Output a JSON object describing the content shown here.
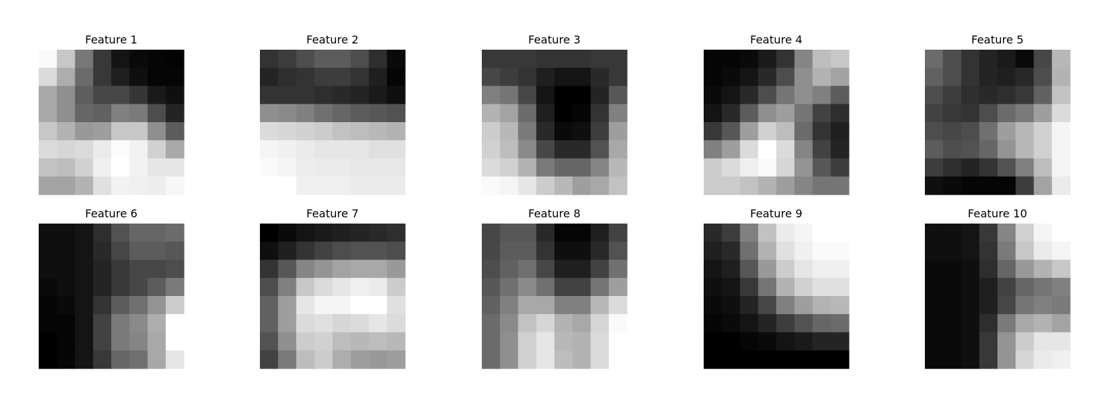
{
  "chart_data": {
    "type": "heatmap",
    "colormap": "gray",
    "value_range": [
      0,
      1
    ],
    "layout": {
      "rows": 2,
      "cols": 5
    },
    "panels": [
      {
        "title": "Feature 1",
        "values": [
          [
            0.98,
            0.78,
            0.47,
            0.22,
            0.08,
            0.04,
            0.02,
            0.01
          ],
          [
            0.86,
            0.68,
            0.42,
            0.22,
            0.12,
            0.06,
            0.02,
            0.02
          ],
          [
            0.66,
            0.56,
            0.37,
            0.28,
            0.28,
            0.21,
            0.1,
            0.06
          ],
          [
            0.66,
            0.56,
            0.4,
            0.38,
            0.5,
            0.48,
            0.3,
            0.14
          ],
          [
            0.78,
            0.7,
            0.6,
            0.62,
            0.78,
            0.78,
            0.56,
            0.36
          ],
          [
            0.86,
            0.84,
            0.86,
            0.92,
            0.99,
            0.95,
            0.82,
            0.66
          ],
          [
            0.76,
            0.74,
            0.82,
            0.94,
            1.0,
            0.95,
            0.9,
            0.9
          ],
          [
            0.64,
            0.64,
            0.7,
            0.88,
            0.95,
            0.94,
            0.93,
            0.97
          ]
        ]
      },
      {
        "title": "Feature 2",
        "values": [
          [
            0.2,
            0.24,
            0.3,
            0.36,
            0.36,
            0.3,
            0.18,
            0.04
          ],
          [
            0.14,
            0.18,
            0.2,
            0.24,
            0.24,
            0.2,
            0.12,
            0.02
          ],
          [
            0.2,
            0.2,
            0.2,
            0.18,
            0.16,
            0.14,
            0.1,
            0.06
          ],
          [
            0.56,
            0.54,
            0.5,
            0.44,
            0.4,
            0.36,
            0.34,
            0.32
          ],
          [
            0.86,
            0.84,
            0.82,
            0.8,
            0.76,
            0.74,
            0.72,
            0.7
          ],
          [
            0.96,
            0.94,
            0.92,
            0.9,
            0.9,
            0.9,
            0.88,
            0.88
          ],
          [
            0.98,
            0.96,
            0.93,
            0.92,
            0.92,
            0.91,
            0.91,
            0.91
          ],
          [
            1.0,
            1.0,
            0.94,
            0.94,
            0.94,
            0.92,
            0.92,
            0.92
          ]
        ]
      },
      {
        "title": "Feature 3",
        "values": [
          [
            0.22,
            0.22,
            0.22,
            0.2,
            0.2,
            0.2,
            0.22,
            0.22
          ],
          [
            0.28,
            0.24,
            0.2,
            0.12,
            0.08,
            0.08,
            0.16,
            0.22
          ],
          [
            0.5,
            0.46,
            0.28,
            0.08,
            0.0,
            0.0,
            0.14,
            0.34
          ],
          [
            0.7,
            0.64,
            0.42,
            0.12,
            0.0,
            0.02,
            0.2,
            0.5
          ],
          [
            0.8,
            0.72,
            0.48,
            0.16,
            0.04,
            0.06,
            0.24,
            0.62
          ],
          [
            0.82,
            0.74,
            0.54,
            0.28,
            0.16,
            0.16,
            0.32,
            0.66
          ],
          [
            0.86,
            0.82,
            0.7,
            0.48,
            0.4,
            0.4,
            0.52,
            0.72
          ],
          [
            0.98,
            0.96,
            0.9,
            0.8,
            0.72,
            0.62,
            0.66,
            0.76
          ]
        ]
      },
      {
        "title": "Feature 4",
        "values": [
          [
            0.02,
            0.02,
            0.04,
            0.1,
            0.2,
            0.52,
            0.74,
            0.78
          ],
          [
            0.02,
            0.04,
            0.08,
            0.16,
            0.3,
            0.56,
            0.7,
            0.64
          ],
          [
            0.04,
            0.08,
            0.16,
            0.3,
            0.46,
            0.56,
            0.5,
            0.36
          ],
          [
            0.08,
            0.16,
            0.36,
            0.56,
            0.62,
            0.46,
            0.26,
            0.18
          ],
          [
            0.22,
            0.34,
            0.62,
            0.82,
            0.74,
            0.42,
            0.2,
            0.12
          ],
          [
            0.5,
            0.62,
            0.86,
            1.0,
            0.86,
            0.52,
            0.26,
            0.14
          ],
          [
            0.8,
            0.86,
            0.94,
            0.98,
            0.84,
            0.58,
            0.34,
            0.24
          ],
          [
            0.8,
            0.8,
            0.76,
            0.7,
            0.62,
            0.52,
            0.46,
            0.46
          ]
        ]
      },
      {
        "title": "Feature 5",
        "values": [
          [
            0.42,
            0.3,
            0.2,
            0.14,
            0.1,
            0.04,
            0.28,
            0.72
          ],
          [
            0.38,
            0.3,
            0.2,
            0.14,
            0.12,
            0.16,
            0.3,
            0.7
          ],
          [
            0.3,
            0.24,
            0.18,
            0.16,
            0.18,
            0.22,
            0.38,
            0.76
          ],
          [
            0.26,
            0.22,
            0.2,
            0.3,
            0.42,
            0.48,
            0.62,
            0.86
          ],
          [
            0.3,
            0.28,
            0.3,
            0.44,
            0.62,
            0.72,
            0.82,
            0.96
          ],
          [
            0.36,
            0.3,
            0.32,
            0.4,
            0.58,
            0.72,
            0.82,
            0.96
          ],
          [
            0.24,
            0.18,
            0.14,
            0.2,
            0.32,
            0.5,
            0.74,
            0.96
          ],
          [
            0.06,
            0.04,
            0.02,
            0.02,
            0.02,
            0.24,
            0.64,
            0.92
          ]
        ]
      },
      {
        "title": "Feature 6",
        "values": [
          [
            0.06,
            0.06,
            0.08,
            0.18,
            0.32,
            0.4,
            0.4,
            0.42
          ],
          [
            0.06,
            0.06,
            0.08,
            0.16,
            0.28,
            0.36,
            0.36,
            0.34
          ],
          [
            0.06,
            0.06,
            0.08,
            0.14,
            0.22,
            0.28,
            0.28,
            0.3
          ],
          [
            0.04,
            0.06,
            0.08,
            0.14,
            0.22,
            0.28,
            0.36,
            0.48
          ],
          [
            0.02,
            0.04,
            0.08,
            0.2,
            0.36,
            0.44,
            0.58,
            0.8
          ],
          [
            0.02,
            0.02,
            0.08,
            0.26,
            0.48,
            0.54,
            0.68,
            1.0
          ],
          [
            0.0,
            0.02,
            0.08,
            0.26,
            0.48,
            0.52,
            0.66,
            1.0
          ],
          [
            0.0,
            0.02,
            0.08,
            0.22,
            0.4,
            0.44,
            0.66,
            0.9
          ]
        ]
      },
      {
        "title": "Feature 7",
        "values": [
          [
            0.0,
            0.04,
            0.08,
            0.1,
            0.12,
            0.14,
            0.16,
            0.18
          ],
          [
            0.06,
            0.12,
            0.2,
            0.26,
            0.3,
            0.32,
            0.32,
            0.3
          ],
          [
            0.2,
            0.34,
            0.52,
            0.58,
            0.64,
            0.66,
            0.66,
            0.6
          ],
          [
            0.3,
            0.5,
            0.78,
            0.86,
            0.9,
            0.94,
            0.92,
            0.8
          ],
          [
            0.38,
            0.62,
            0.9,
            0.96,
            0.96,
            1.0,
            1.0,
            0.88
          ],
          [
            0.38,
            0.62,
            0.86,
            0.88,
            0.84,
            0.86,
            0.9,
            0.86
          ],
          [
            0.32,
            0.56,
            0.8,
            0.82,
            0.74,
            0.72,
            0.74,
            0.72
          ],
          [
            0.26,
            0.48,
            0.74,
            0.8,
            0.68,
            0.62,
            0.6,
            0.62
          ]
        ]
      },
      {
        "title": "Feature 8",
        "values": [
          [
            0.28,
            0.34,
            0.34,
            0.16,
            0.02,
            0.02,
            0.12,
            0.26
          ],
          [
            0.28,
            0.36,
            0.36,
            0.2,
            0.06,
            0.06,
            0.16,
            0.32
          ],
          [
            0.3,
            0.38,
            0.44,
            0.28,
            0.12,
            0.12,
            0.26,
            0.44
          ],
          [
            0.34,
            0.44,
            0.54,
            0.44,
            0.26,
            0.26,
            0.46,
            0.62
          ],
          [
            0.38,
            0.5,
            0.66,
            0.66,
            0.5,
            0.5,
            0.72,
            0.86
          ],
          [
            0.42,
            0.54,
            0.76,
            0.84,
            0.7,
            0.66,
            0.84,
            0.98
          ],
          [
            0.42,
            0.56,
            0.82,
            0.9,
            0.72,
            0.7,
            0.86,
            1.0
          ],
          [
            0.42,
            0.56,
            0.82,
            0.9,
            0.74,
            0.7,
            0.86,
            1.0
          ]
        ]
      },
      {
        "title": "Feature 9",
        "values": [
          [
            0.16,
            0.24,
            0.5,
            0.76,
            0.92,
            0.96,
            1.0,
            1.0
          ],
          [
            0.12,
            0.16,
            0.44,
            0.7,
            0.88,
            0.94,
            0.98,
            0.98
          ],
          [
            0.08,
            0.12,
            0.34,
            0.6,
            0.8,
            0.9,
            0.94,
            0.94
          ],
          [
            0.06,
            0.08,
            0.22,
            0.46,
            0.7,
            0.82,
            0.88,
            0.88
          ],
          [
            0.04,
            0.06,
            0.14,
            0.28,
            0.5,
            0.62,
            0.7,
            0.72
          ],
          [
            0.02,
            0.04,
            0.08,
            0.14,
            0.24,
            0.32,
            0.4,
            0.42
          ],
          [
            0.0,
            0.0,
            0.02,
            0.04,
            0.08,
            0.1,
            0.14,
            0.14
          ],
          [
            0.0,
            0.0,
            0.0,
            0.0,
            0.0,
            0.0,
            0.0,
            0.0
          ]
        ]
      },
      {
        "title": "Feature 10",
        "values": [
          [
            0.06,
            0.06,
            0.08,
            0.22,
            0.52,
            0.82,
            0.96,
            1.0
          ],
          [
            0.06,
            0.06,
            0.08,
            0.2,
            0.48,
            0.78,
            0.92,
            0.96
          ],
          [
            0.04,
            0.04,
            0.06,
            0.18,
            0.4,
            0.6,
            0.7,
            0.78
          ],
          [
            0.04,
            0.04,
            0.06,
            0.12,
            0.26,
            0.4,
            0.46,
            0.5
          ],
          [
            0.04,
            0.04,
            0.06,
            0.12,
            0.28,
            0.46,
            0.5,
            0.48
          ],
          [
            0.04,
            0.04,
            0.06,
            0.18,
            0.48,
            0.66,
            0.7,
            0.64
          ],
          [
            0.04,
            0.04,
            0.06,
            0.22,
            0.58,
            0.8,
            0.9,
            0.9
          ],
          [
            0.04,
            0.04,
            0.06,
            0.22,
            0.58,
            0.84,
            0.92,
            0.94
          ]
        ]
      }
    ]
  }
}
